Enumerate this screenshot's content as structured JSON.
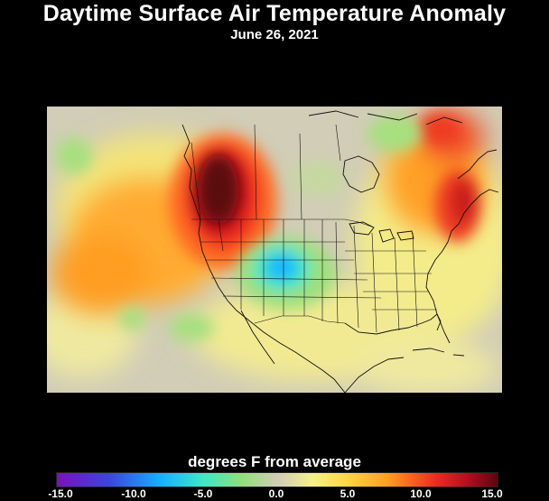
{
  "title": "Daytime Surface Air Temperature Anomaly",
  "date": "June 26, 2021",
  "legend": {
    "caption": "degrees F from average",
    "ticks": [
      "-15.0",
      "-10.0",
      "-5.0",
      "0.0",
      "5.0",
      "10.0",
      "15.0"
    ],
    "range": [
      -15,
      15
    ],
    "colors": {
      "min": "#7a12b8",
      "cold": "#16b4ff",
      "neutral": "#d1cdb6",
      "warm": "#ffd540",
      "hot": "#ee2a20",
      "max": "#5a0711"
    }
  },
  "map": {
    "region": "North America",
    "anomalies": [
      {
        "area": "Pacific Northwest",
        "value": 15
      },
      {
        "area": "Northeastern US / Quebec",
        "value": 9
      },
      {
        "area": "Colorado",
        "value": -8
      }
    ]
  }
}
